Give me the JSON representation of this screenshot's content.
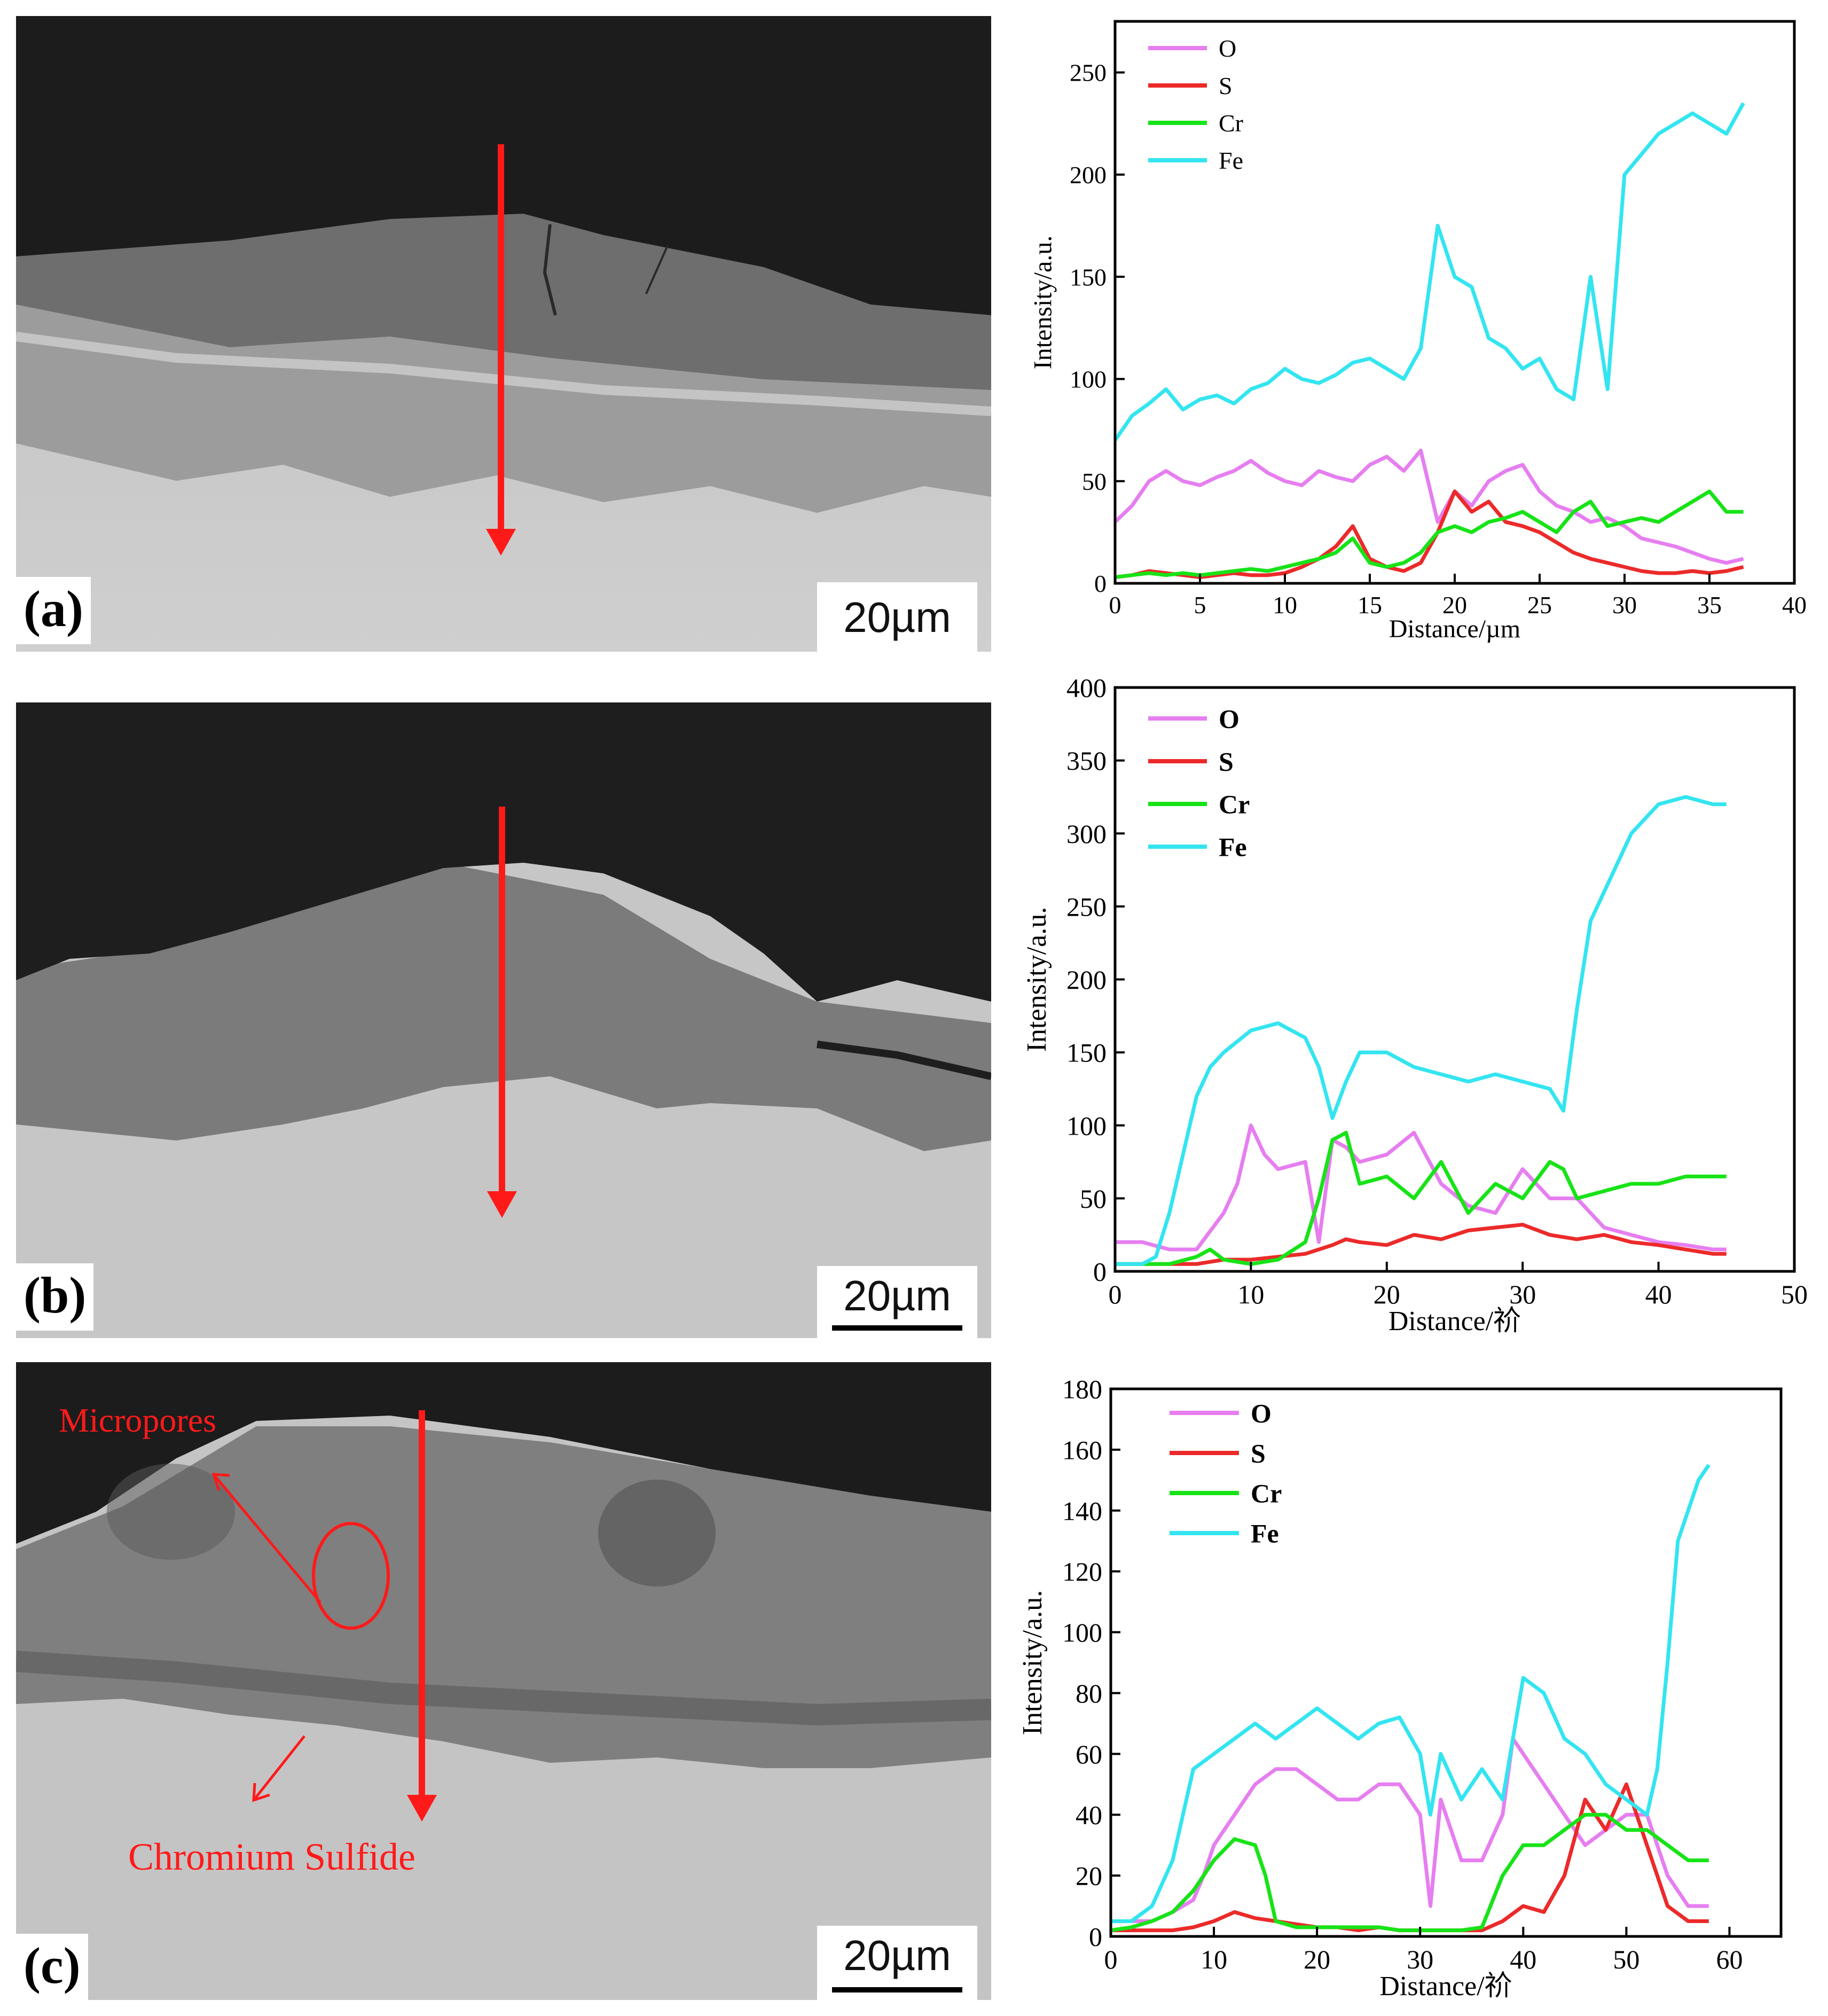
{
  "panels": [
    {
      "label": "(a)",
      "scale": "20µm"
    },
    {
      "label": "(b)",
      "scale": "20µm"
    },
    {
      "label": "(c)",
      "scale": "20µm",
      "annotations": [
        "Micropores",
        "Chromium Sulfide"
      ]
    }
  ],
  "colors": {
    "O": "#e67ef0",
    "S": "#ec2a2a",
    "Cr": "#17e317",
    "Fe": "#33e5f0",
    "arrow": "#ff1a1a"
  },
  "chart_data": [
    {
      "type": "line",
      "xlabel": "Distance/µm",
      "ylabel": "Intensity/a.u.",
      "xlim": [
        0,
        40
      ],
      "ylim": [
        0,
        275
      ],
      "xticks": [
        0,
        5,
        10,
        15,
        20,
        25,
        30,
        35,
        40
      ],
      "yticks": [
        0,
        50,
        100,
        150,
        200,
        250
      ],
      "legend_position": "top-left",
      "legend_bold": false,
      "series": [
        {
          "name": "O",
          "x": [
            0,
            1,
            2,
            3,
            4,
            5,
            6,
            7,
            8,
            9,
            10,
            11,
            12,
            13,
            14,
            15,
            16,
            17,
            18,
            19,
            20,
            21,
            22,
            23,
            24,
            25,
            26,
            27,
            28,
            29,
            30,
            31,
            32,
            33,
            34,
            35,
            36,
            37
          ],
          "values": [
            30,
            38,
            50,
            55,
            50,
            48,
            52,
            55,
            60,
            54,
            50,
            48,
            55,
            52,
            50,
            58,
            62,
            55,
            65,
            30,
            45,
            38,
            50,
            55,
            58,
            45,
            38,
            35,
            30,
            32,
            28,
            22,
            20,
            18,
            15,
            12,
            10,
            12
          ]
        },
        {
          "name": "S",
          "x": [
            0,
            1,
            2,
            3,
            4,
            5,
            6,
            7,
            8,
            9,
            10,
            11,
            12,
            13,
            14,
            15,
            16,
            17,
            18,
            19,
            20,
            21,
            22,
            23,
            24,
            25,
            26,
            27,
            28,
            29,
            30,
            31,
            32,
            33,
            34,
            35,
            36,
            37
          ],
          "values": [
            3,
            4,
            6,
            5,
            4,
            3,
            4,
            5,
            4,
            4,
            5,
            8,
            12,
            18,
            28,
            12,
            8,
            6,
            10,
            25,
            45,
            35,
            40,
            30,
            28,
            25,
            20,
            15,
            12,
            10,
            8,
            6,
            5,
            5,
            6,
            5,
            6,
            8
          ]
        },
        {
          "name": "Cr",
          "x": [
            0,
            1,
            2,
            3,
            4,
            5,
            6,
            7,
            8,
            9,
            10,
            11,
            12,
            13,
            14,
            15,
            16,
            17,
            18,
            19,
            20,
            21,
            22,
            23,
            24,
            25,
            26,
            27,
            28,
            29,
            30,
            31,
            32,
            33,
            34,
            35,
            36,
            37
          ],
          "values": [
            3,
            4,
            5,
            4,
            5,
            4,
            5,
            6,
            7,
            6,
            8,
            10,
            12,
            15,
            22,
            10,
            8,
            10,
            15,
            25,
            28,
            25,
            30,
            32,
            35,
            30,
            25,
            35,
            40,
            28,
            30,
            32,
            30,
            35,
            40,
            45,
            35,
            35
          ]
        },
        {
          "name": "Fe",
          "x": [
            0,
            1,
            2,
            3,
            4,
            5,
            6,
            7,
            8,
            9,
            10,
            11,
            12,
            13,
            14,
            15,
            16,
            17,
            18,
            19,
            20,
            21,
            22,
            23,
            24,
            25,
            26,
            27,
            28,
            29,
            30,
            31,
            32,
            33,
            34,
            35,
            36,
            37
          ],
          "values": [
            70,
            82,
            88,
            95,
            85,
            90,
            92,
            88,
            95,
            98,
            105,
            100,
            98,
            102,
            108,
            110,
            105,
            100,
            115,
            175,
            150,
            145,
            120,
            115,
            105,
            110,
            95,
            90,
            150,
            95,
            200,
            210,
            220,
            225,
            230,
            225,
            220,
            235
          ]
        }
      ]
    },
    {
      "type": "line",
      "xlabel": "Distance/祄",
      "ylabel": "Intensity/a.u.",
      "xlim": [
        0,
        50
      ],
      "ylim": [
        0,
        400
      ],
      "xticks": [
        0,
        10,
        20,
        30,
        40,
        50
      ],
      "yticks": [
        0,
        50,
        100,
        150,
        200,
        250,
        300,
        350,
        400
      ],
      "legend_position": "top-left",
      "legend_bold": true,
      "series": [
        {
          "name": "O",
          "x": [
            0,
            2,
            4,
            6,
            8,
            9,
            10,
            11,
            12,
            14,
            15,
            16,
            17,
            18,
            20,
            22,
            24,
            26,
            28,
            30,
            32,
            34,
            36,
            38,
            40,
            42,
            44,
            45
          ],
          "values": [
            20,
            20,
            15,
            15,
            40,
            60,
            100,
            80,
            70,
            75,
            20,
            90,
            85,
            75,
            80,
            95,
            60,
            45,
            40,
            70,
            50,
            50,
            30,
            25,
            20,
            18,
            15,
            15
          ]
        },
        {
          "name": "S",
          "x": [
            0,
            2,
            4,
            6,
            8,
            10,
            12,
            14,
            15,
            16,
            17,
            18,
            20,
            22,
            24,
            26,
            28,
            30,
            32,
            34,
            36,
            38,
            40,
            42,
            44,
            45
          ],
          "values": [
            5,
            5,
            5,
            5,
            8,
            8,
            10,
            12,
            15,
            18,
            22,
            20,
            18,
            25,
            22,
            28,
            30,
            32,
            25,
            22,
            25,
            20,
            18,
            15,
            12,
            12
          ]
        },
        {
          "name": "Cr",
          "x": [
            0,
            2,
            4,
            6,
            7,
            8,
            10,
            12,
            14,
            15,
            16,
            17,
            18,
            20,
            22,
            24,
            26,
            28,
            30,
            32,
            33,
            34,
            36,
            38,
            40,
            42,
            44,
            45
          ],
          "values": [
            5,
            5,
            5,
            10,
            15,
            8,
            5,
            8,
            20,
            50,
            90,
            95,
            60,
            65,
            50,
            75,
            40,
            60,
            50,
            75,
            70,
            50,
            55,
            60,
            60,
            65,
            65,
            65
          ]
        },
        {
          "name": "Fe",
          "x": [
            0,
            2,
            3,
            4,
            5,
            6,
            7,
            8,
            10,
            12,
            14,
            15,
            16,
            17,
            18,
            20,
            22,
            24,
            26,
            28,
            30,
            32,
            33,
            34,
            35,
            36,
            37,
            38,
            40,
            42,
            44,
            45
          ],
          "values": [
            5,
            5,
            10,
            40,
            80,
            120,
            140,
            150,
            165,
            170,
            160,
            140,
            105,
            130,
            150,
            150,
            140,
            135,
            130,
            135,
            130,
            125,
            110,
            180,
            240,
            260,
            280,
            300,
            320,
            325,
            320,
            320
          ]
        }
      ]
    },
    {
      "type": "line",
      "xlabel": "Distance/祄",
      "ylabel": "Intensity/a.u.",
      "xlim": [
        0,
        65
      ],
      "ylim": [
        0,
        180
      ],
      "xticks": [
        0,
        10,
        20,
        30,
        40,
        50,
        60
      ],
      "yticks": [
        0,
        20,
        40,
        60,
        80,
        100,
        120,
        140,
        160,
        180
      ],
      "legend_position": "top-left",
      "legend_bold": true,
      "series": [
        {
          "name": "O",
          "x": [
            0,
            2,
            4,
            6,
            8,
            9,
            10,
            12,
            14,
            16,
            18,
            20,
            22,
            24,
            26,
            28,
            30,
            31,
            32,
            34,
            36,
            38,
            39,
            40,
            42,
            44,
            46,
            48,
            50,
            52,
            54,
            56,
            58
          ],
          "values": [
            5,
            5,
            5,
            8,
            12,
            20,
            30,
            40,
            50,
            55,
            55,
            50,
            45,
            45,
            50,
            50,
            40,
            10,
            45,
            25,
            25,
            40,
            65,
            60,
            50,
            40,
            30,
            35,
            40,
            40,
            20,
            10,
            10
          ]
        },
        {
          "name": "S",
          "x": [
            0,
            2,
            4,
            6,
            8,
            10,
            12,
            14,
            16,
            18,
            20,
            22,
            24,
            26,
            28,
            30,
            32,
            34,
            36,
            38,
            40,
            42,
            44,
            46,
            48,
            50,
            52,
            54,
            56,
            58
          ],
          "values": [
            2,
            2,
            2,
            2,
            3,
            5,
            8,
            6,
            5,
            4,
            3,
            3,
            2,
            3,
            2,
            2,
            2,
            2,
            2,
            5,
            10,
            8,
            20,
            45,
            35,
            50,
            30,
            10,
            5,
            5
          ]
        },
        {
          "name": "Cr",
          "x": [
            0,
            2,
            4,
            6,
            8,
            10,
            12,
            14,
            15,
            16,
            18,
            20,
            22,
            24,
            26,
            28,
            30,
            32,
            34,
            36,
            38,
            40,
            42,
            44,
            46,
            48,
            50,
            52,
            54,
            56,
            58
          ],
          "values": [
            2,
            3,
            5,
            8,
            15,
            25,
            32,
            30,
            20,
            5,
            3,
            3,
            3,
            3,
            3,
            2,
            2,
            2,
            2,
            3,
            20,
            30,
            30,
            35,
            40,
            40,
            35,
            35,
            30,
            25,
            25
          ]
        },
        {
          "name": "Fe",
          "x": [
            0,
            2,
            4,
            6,
            8,
            10,
            12,
            14,
            16,
            18,
            20,
            22,
            24,
            26,
            28,
            30,
            31,
            32,
            34,
            36,
            38,
            40,
            42,
            44,
            46,
            48,
            50,
            52,
            53,
            54,
            55,
            56,
            57,
            58
          ],
          "values": [
            5,
            5,
            10,
            25,
            55,
            60,
            65,
            70,
            65,
            70,
            75,
            70,
            65,
            70,
            72,
            60,
            40,
            60,
            45,
            55,
            45,
            85,
            80,
            65,
            60,
            50,
            45,
            40,
            55,
            90,
            130,
            140,
            150,
            155
          ]
        }
      ]
    }
  ]
}
